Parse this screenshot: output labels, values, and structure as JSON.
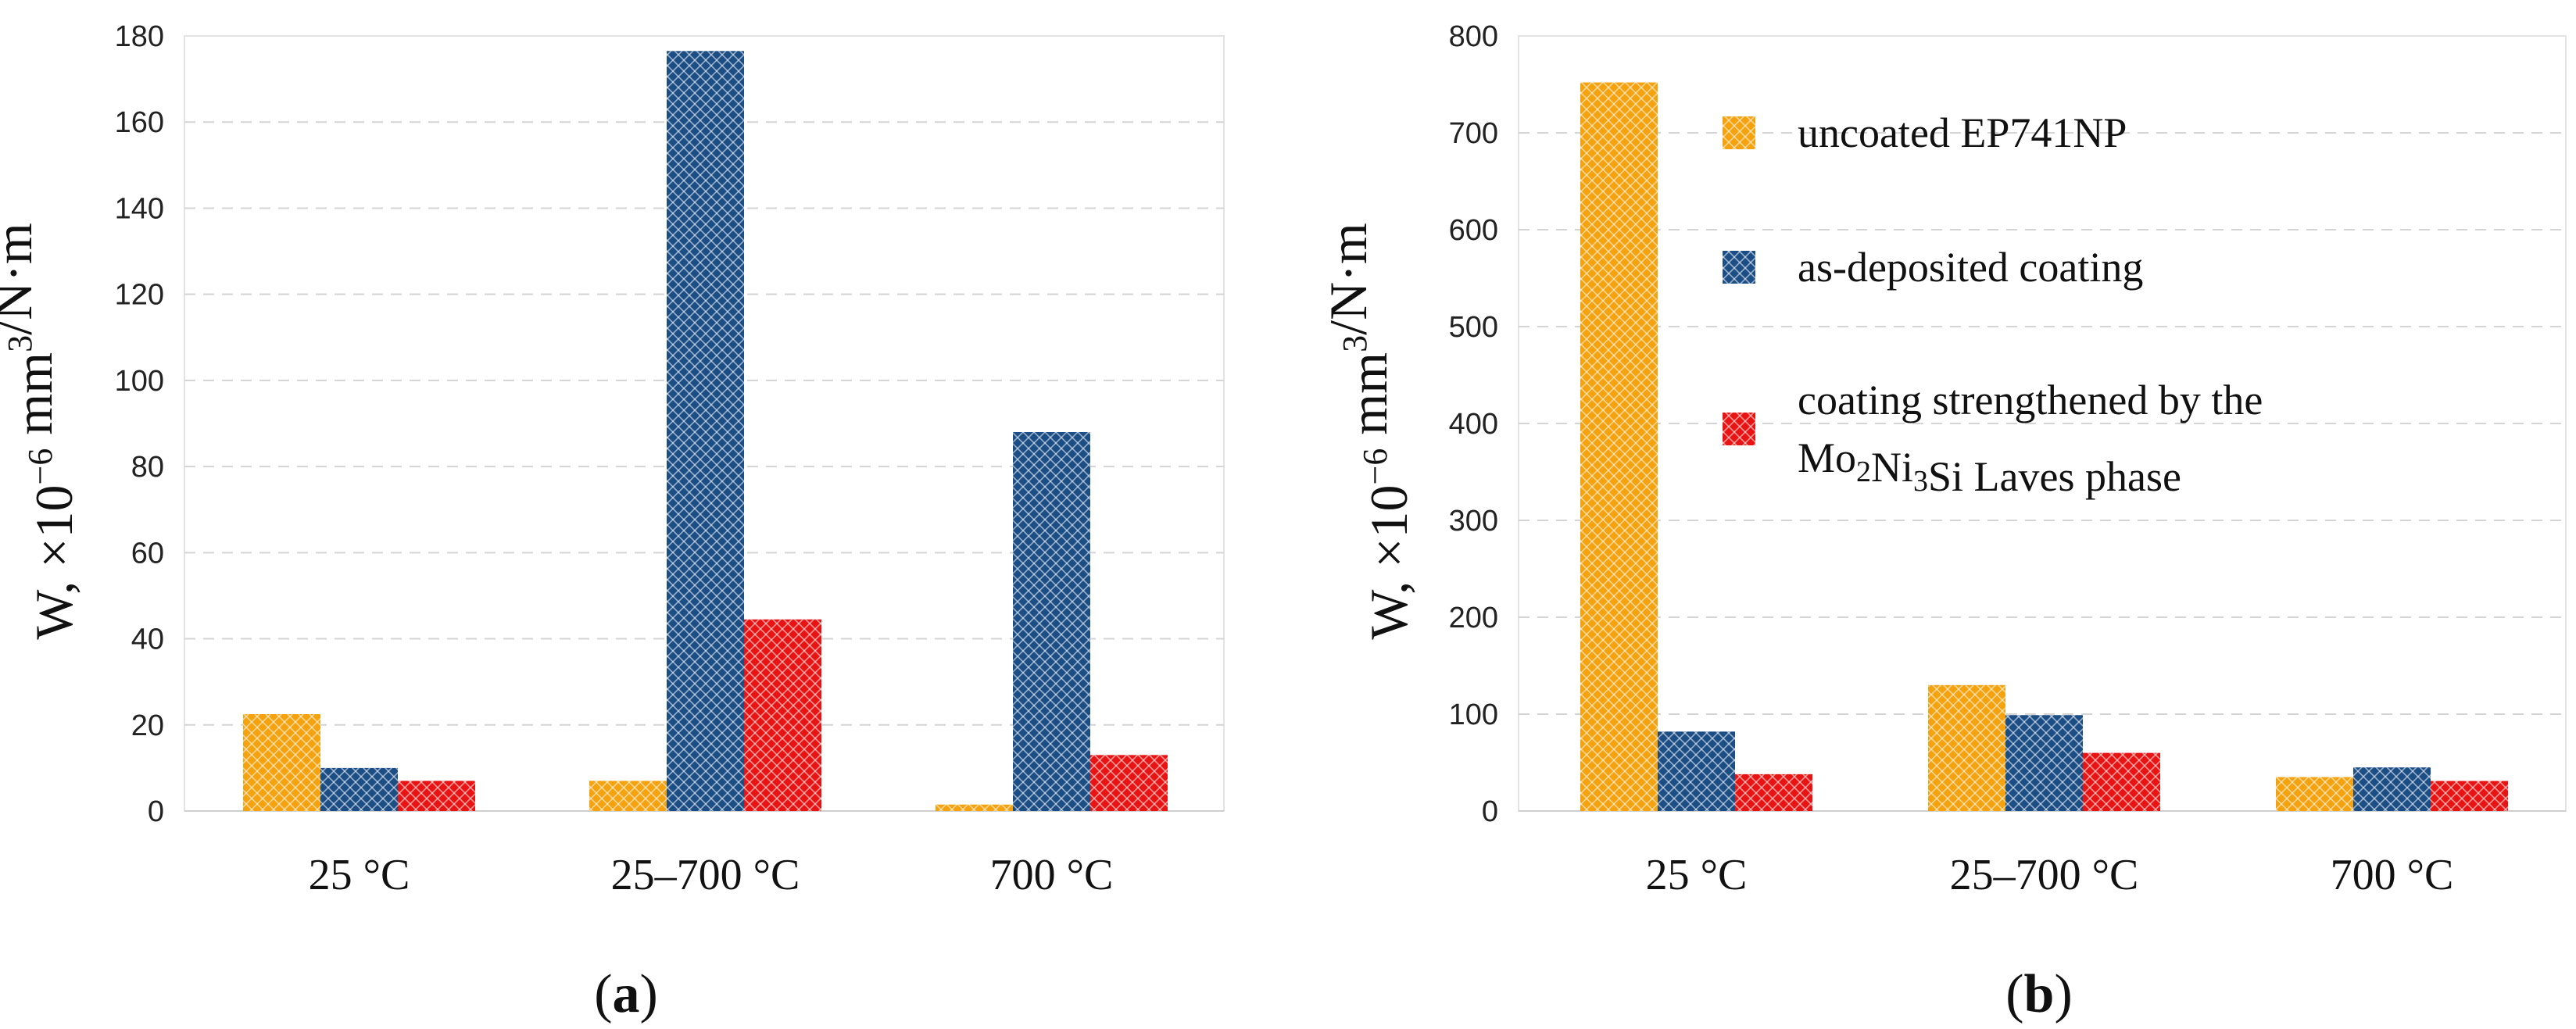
{
  "chart_data": [
    {
      "type": "bar",
      "panel_label": "a",
      "categories": [
        "25 °C",
        "25–700 °C",
        "700 °C"
      ],
      "ylim": [
        0,
        180
      ],
      "yticks": [
        0,
        20,
        40,
        60,
        80,
        100,
        120,
        140,
        160,
        180
      ],
      "ylabel": {
        "base": "W, ×10",
        "exp": "−6",
        "mid": " mm",
        "exp2": "3",
        "tail": "/N·m"
      },
      "grid": true,
      "series": [
        {
          "name": "uncoated EP741NP",
          "color": "#f5a20f",
          "values": [
            22.5,
            7,
            1.5
          ]
        },
        {
          "name": "as-deposited coating",
          "color": "#1c4e86",
          "values": [
            10,
            176.5,
            88
          ]
        },
        {
          "name": "coating strengthened by the Mo2Ni3Si Laves phase",
          "color": "#e81313",
          "values": [
            7,
            44.5,
            13
          ]
        }
      ]
    },
    {
      "type": "bar",
      "panel_label": "b",
      "categories": [
        "25 °C",
        "25–700 °C",
        "700 °C"
      ],
      "ylim": [
        0,
        800
      ],
      "yticks": [
        0,
        100,
        200,
        300,
        400,
        500,
        600,
        700,
        800
      ],
      "ylabel": {
        "base": "W, ×10",
        "exp": "−6",
        "mid": " mm",
        "exp2": "3",
        "tail": "/N·m"
      },
      "grid": true,
      "legend": {
        "placement": "top-right",
        "entries": [
          {
            "lines": [
              [
                {
                  "t": "uncoated EP741NP"
                }
              ]
            ]
          },
          {
            "lines": [
              [
                {
                  "t": "as-deposited coating"
                }
              ]
            ]
          },
          {
            "lines": [
              [
                {
                  "t": "coating strengthened by the"
                }
              ],
              [
                {
                  "t": "Mo"
                },
                {
                  "t": "2",
                  "sub": true
                },
                {
                  "t": "Ni"
                },
                {
                  "t": "3",
                  "sub": true
                },
                {
                  "t": "Si Laves phase"
                }
              ]
            ]
          }
        ]
      },
      "series": [
        {
          "name": "uncoated EP741NP",
          "color": "#f5a20f",
          "values": [
            752,
            130,
            35
          ]
        },
        {
          "name": "as-deposited coating",
          "color": "#1c4e86",
          "values": [
            82,
            99,
            45
          ]
        },
        {
          "name": "coating strengthened by the Mo2Ni3Si Laves phase",
          "color": "#e81313",
          "values": [
            38,
            60,
            31
          ]
        }
      ]
    }
  ]
}
